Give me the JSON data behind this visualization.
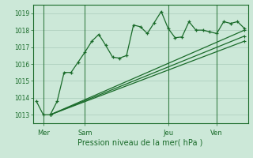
{
  "background_color": "#cce8d8",
  "grid_color": "#aaccbb",
  "line_color": "#1a6b2a",
  "title": "Pression niveau de la mer( hPa )",
  "ylabel_ticks": [
    1013,
    1014,
    1015,
    1016,
    1017,
    1018,
    1019
  ],
  "ylim": [
    1012.5,
    1019.5
  ],
  "day_labels": [
    "Mer",
    "Sam",
    "Jeu",
    "Ven"
  ],
  "day_positions": [
    1,
    7,
    19,
    26
  ],
  "series1_x": [
    0,
    1,
    2,
    3,
    4,
    5,
    6,
    7,
    8,
    9,
    10,
    11,
    12,
    13,
    14,
    15,
    16,
    17,
    18,
    19,
    20,
    21,
    22,
    23,
    24,
    25,
    26,
    27,
    28,
    29,
    30
  ],
  "series1_y": [
    1013.8,
    1013.0,
    1013.0,
    1013.8,
    1015.5,
    1015.5,
    1016.1,
    1016.7,
    1017.35,
    1017.75,
    1017.1,
    1016.4,
    1016.35,
    1016.5,
    1018.3,
    1018.2,
    1017.8,
    1018.45,
    1019.1,
    1018.1,
    1017.55,
    1017.6,
    1018.5,
    1018.0,
    1018.0,
    1017.9,
    1017.8,
    1018.5,
    1018.4,
    1018.5,
    1018.1
  ],
  "series2_x": [
    2,
    30
  ],
  "series2_y": [
    1013.0,
    1017.65
  ],
  "series3_x": [
    2,
    30
  ],
  "series3_y": [
    1013.0,
    1017.35
  ],
  "series4_x": [
    2,
    30
  ],
  "series4_y": [
    1013.0,
    1018.0
  ],
  "xlim": [
    -0.5,
    30.5
  ]
}
